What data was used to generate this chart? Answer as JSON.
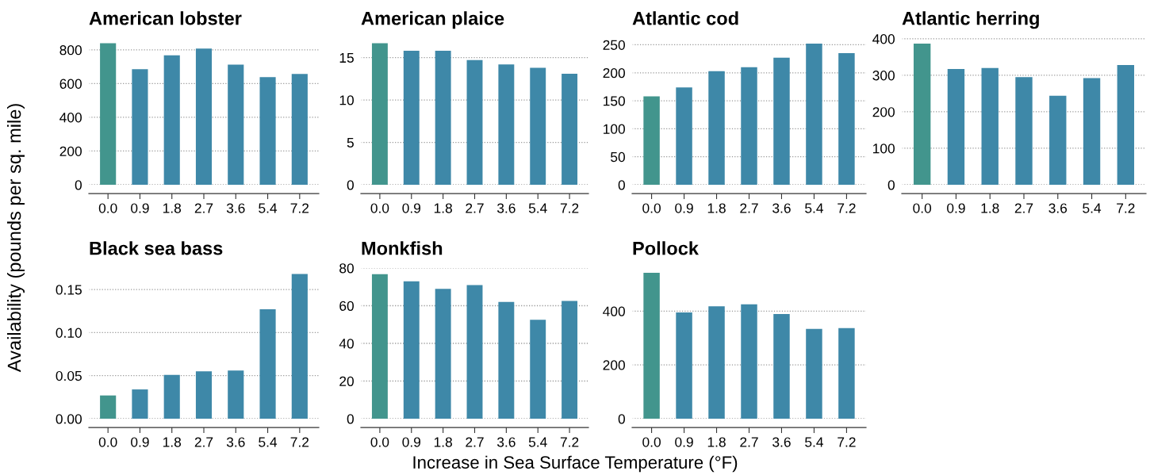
{
  "chart_data": [
    {
      "type": "bar",
      "title": "American lobster",
      "ylabel": "Availability (pounds per sq. mile)",
      "categories": [
        "0.0",
        "0.9",
        "1.8",
        "2.7",
        "3.6",
        "5.4",
        "7.2"
      ],
      "values": [
        840,
        685,
        768,
        808,
        712,
        638,
        657
      ],
      "colors": [
        "#42958d",
        "#3e88a8",
        "#3e88a8",
        "#3e88a8",
        "#3e88a8",
        "#3e88a8",
        "#3e88a8"
      ],
      "ylim": [
        0,
        870
      ],
      "yticks": [
        0,
        200,
        400,
        600,
        800
      ],
      "grid": "y"
    },
    {
      "type": "bar",
      "title": "American plaice",
      "categories": [
        "0.0",
        "0.9",
        "1.8",
        "2.7",
        "3.6",
        "5.4",
        "7.2"
      ],
      "values": [
        16.7,
        15.8,
        15.8,
        14.7,
        14.2,
        13.8,
        13.1
      ],
      "colors": [
        "#42958d",
        "#3e88a8",
        "#3e88a8",
        "#3e88a8",
        "#3e88a8",
        "#3e88a8",
        "#3e88a8"
      ],
      "ylim": [
        0,
        17.3
      ],
      "yticks": [
        0,
        5,
        10,
        15
      ],
      "grid": "y"
    },
    {
      "type": "bar",
      "title": "Atlantic cod",
      "categories": [
        "0.0",
        "0.9",
        "1.8",
        "2.7",
        "3.6",
        "5.4",
        "7.2"
      ],
      "values": [
        158,
        174,
        203,
        210,
        227,
        252,
        235
      ],
      "colors": [
        "#42958d",
        "#3e88a8",
        "#3e88a8",
        "#3e88a8",
        "#3e88a8",
        "#3e88a8",
        "#3e88a8"
      ],
      "ylim": [
        0,
        262
      ],
      "yticks": [
        0,
        50,
        100,
        150,
        200,
        250
      ],
      "grid": "y"
    },
    {
      "type": "bar",
      "title": "Atlantic herring",
      "categories": [
        "0.0",
        "0.9",
        "1.8",
        "2.7",
        "3.6",
        "5.4",
        "7.2"
      ],
      "values": [
        387,
        317,
        320,
        295,
        244,
        292,
        328
      ],
      "colors": [
        "#42958d",
        "#3e88a8",
        "#3e88a8",
        "#3e88a8",
        "#3e88a8",
        "#3e88a8",
        "#3e88a8"
      ],
      "ylim": [
        0,
        402
      ],
      "yticks": [
        0,
        100,
        200,
        300,
        400
      ],
      "grid": "y"
    },
    {
      "type": "bar",
      "title": "Black sea bass",
      "categories": [
        "0.0",
        "0.9",
        "1.8",
        "2.7",
        "3.6",
        "5.4",
        "7.2"
      ],
      "values": [
        0.027,
        0.034,
        0.051,
        0.055,
        0.056,
        0.127,
        0.168
      ],
      "colors": [
        "#42958d",
        "#3e88a8",
        "#3e88a8",
        "#3e88a8",
        "#3e88a8",
        "#3e88a8",
        "#3e88a8"
      ],
      "ylim": [
        0,
        0.175
      ],
      "yticks": [
        {
          "value": 0,
          "label": "0.00"
        },
        {
          "value": 0.05,
          "label": "0.05"
        },
        {
          "value": 0.1,
          "label": "0.10"
        },
        {
          "value": 0.15,
          "label": "0.15"
        }
      ],
      "grid": "y"
    },
    {
      "type": "bar",
      "title": "Monkfish",
      "xlabel": "Increase in Sea Surface Temperature (°F)",
      "categories": [
        "0.0",
        "0.9",
        "1.8",
        "2.7",
        "3.6",
        "5.4",
        "7.2"
      ],
      "values": [
        76.7,
        73,
        69,
        71,
        62,
        52.5,
        62.5
      ],
      "colors": [
        "#42958d",
        "#3e88a8",
        "#3e88a8",
        "#3e88a8",
        "#3e88a8",
        "#3e88a8",
        "#3e88a8"
      ],
      "ylim": [
        0,
        80
      ],
      "yticks": [
        0,
        20,
        40,
        60,
        80
      ],
      "grid": "y"
    },
    {
      "type": "bar",
      "title": "Pollock",
      "categories": [
        "0.0",
        "0.9",
        "1.8",
        "2.7",
        "3.6",
        "5.4",
        "7.2"
      ],
      "values": [
        542,
        395,
        418,
        425,
        389,
        334,
        337
      ],
      "colors": [
        "#42958d",
        "#3e88a8",
        "#3e88a8",
        "#3e88a8",
        "#3e88a8",
        "#3e88a8",
        "#3e88a8"
      ],
      "ylim": [
        0,
        560
      ],
      "yticks": [
        0,
        200,
        400
      ],
      "grid": "y"
    }
  ]
}
